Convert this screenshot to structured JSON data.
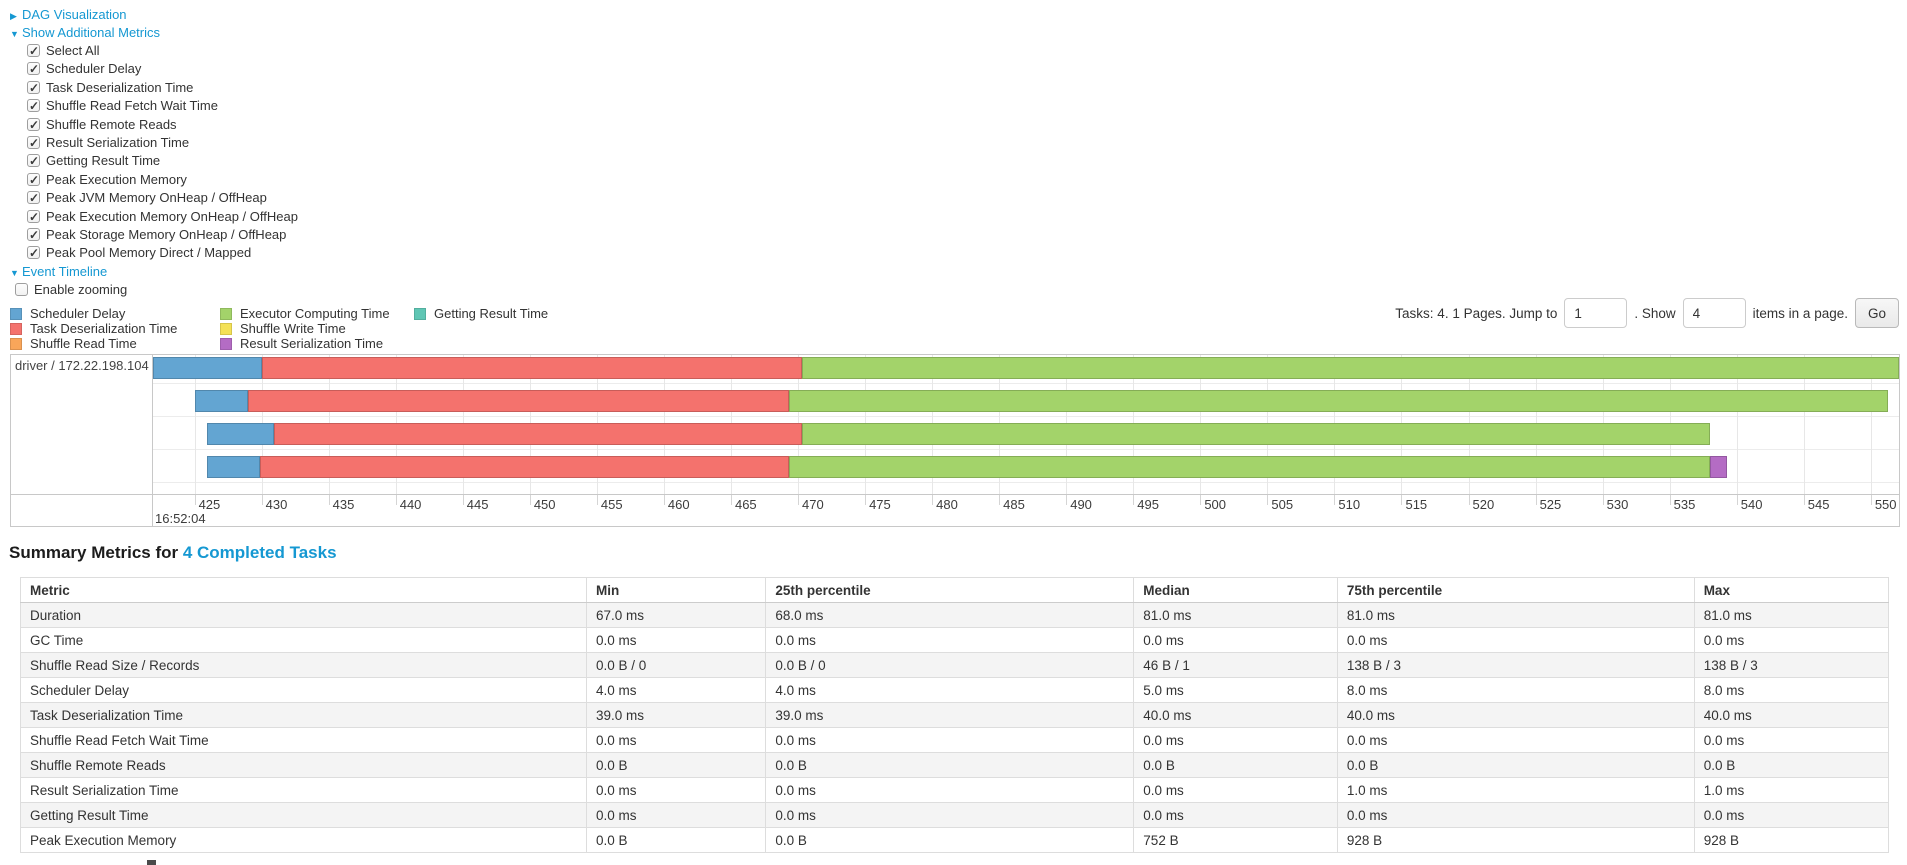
{
  "icons": {
    "collapsed_arrow": "▶",
    "expanded_arrow": "▼"
  },
  "colors": {
    "link": "#1598d2",
    "grid": "#e7e7e7",
    "table_stripe": "#f4f4f4"
  },
  "toggles": {
    "dag": "DAG Visualization",
    "metrics": "Show Additional Metrics",
    "timeline": "Event Timeline"
  },
  "additional_metrics": {
    "items": [
      "Select All",
      "Scheduler Delay",
      "Task Deserialization Time",
      "Shuffle Read Fetch Wait Time",
      "Shuffle Remote Reads",
      "Result Serialization Time",
      "Getting Result Time",
      "Peak Execution Memory",
      "Peak JVM Memory OnHeap / OffHeap",
      "Peak Execution Memory OnHeap / OffHeap",
      "Peak Storage Memory OnHeap / OffHeap",
      "Peak Pool Memory Direct / Mapped"
    ]
  },
  "enable_zooming_label": "Enable zooming",
  "legend": {
    "columns": [
      [
        {
          "label": "Scheduler Delay",
          "color": "#63a5d2"
        },
        {
          "label": "Task Deserialization Time",
          "color": "#f4726d"
        },
        {
          "label": "Shuffle Read Time",
          "color": "#f9a65a"
        }
      ],
      [
        {
          "label": "Executor Computing Time",
          "color": "#a3d36a"
        },
        {
          "label": "Shuffle Write Time",
          "color": "#f4e156"
        },
        {
          "label": "Result Serialization Time",
          "color": "#b46cc4"
        }
      ],
      [
        {
          "label": "Getting Result Time",
          "color": "#5fc6b4"
        }
      ]
    ]
  },
  "pagination": {
    "prefix": "Tasks: 4. 1 Pages. Jump to",
    "jump_value": "1",
    "middle": ". Show",
    "show_value": "4",
    "suffix": "items in a page.",
    "go_label": "Go"
  },
  "chart_data": {
    "type": "timeline",
    "executor_label": "driver / 172.22.198.104",
    "axis": {
      "min": 421.9,
      "max": 552.1,
      "ticks": [
        425,
        430,
        435,
        440,
        445,
        450,
        455,
        460,
        465,
        470,
        475,
        480,
        485,
        490,
        495,
        500,
        505,
        510,
        515,
        520,
        525,
        530,
        535,
        540,
        545,
        550
      ],
      "time_label": "16:52:04"
    },
    "tasks": [
      {
        "segments": [
          {
            "metric": "Scheduler Delay",
            "start": 421.9,
            "end": 430.0
          },
          {
            "metric": "Task Deserialization Time",
            "start": 430.0,
            "end": 470.3
          },
          {
            "metric": "Executor Computing Time",
            "start": 470.3,
            "end": 552.1
          }
        ]
      },
      {
        "segments": [
          {
            "metric": "Scheduler Delay",
            "start": 425.0,
            "end": 429.0
          },
          {
            "metric": "Task Deserialization Time",
            "start": 429.0,
            "end": 469.3
          },
          {
            "metric": "Executor Computing Time",
            "start": 469.3,
            "end": 551.3
          }
        ]
      },
      {
        "segments": [
          {
            "metric": "Scheduler Delay",
            "start": 425.9,
            "end": 430.9
          },
          {
            "metric": "Task Deserialization Time",
            "start": 430.9,
            "end": 470.3
          },
          {
            "metric": "Executor Computing Time",
            "start": 470.3,
            "end": 538.0
          }
        ]
      },
      {
        "segments": [
          {
            "metric": "Scheduler Delay",
            "start": 425.9,
            "end": 429.9
          },
          {
            "metric": "Task Deserialization Time",
            "start": 429.9,
            "end": 469.3
          },
          {
            "metric": "Executor Computing Time",
            "start": 469.3,
            "end": 538.0
          },
          {
            "metric": "Result Serialization Time",
            "start": 538.0,
            "end": 539.3
          }
        ]
      }
    ]
  },
  "summary": {
    "title_prefix": "Summary Metrics for ",
    "title_link": "4 Completed Tasks"
  },
  "summary_table": {
    "headers": [
      "Metric",
      "Min",
      "25th percentile",
      "Median",
      "75th percentile",
      "Max"
    ],
    "rows": [
      [
        "Duration",
        "67.0 ms",
        "68.0 ms",
        "81.0 ms",
        "81.0 ms",
        "81.0 ms"
      ],
      [
        "GC Time",
        "0.0 ms",
        "0.0 ms",
        "0.0 ms",
        "0.0 ms",
        "0.0 ms"
      ],
      [
        "Shuffle Read Size / Records",
        "0.0 B / 0",
        "0.0 B / 0",
        "46 B / 1",
        "138 B / 3",
        "138 B / 3"
      ],
      [
        "Scheduler Delay",
        "4.0 ms",
        "4.0 ms",
        "5.0 ms",
        "8.0 ms",
        "8.0 ms"
      ],
      [
        "Task Deserialization Time",
        "39.0 ms",
        "39.0 ms",
        "40.0 ms",
        "40.0 ms",
        "40.0 ms"
      ],
      [
        "Shuffle Read Fetch Wait Time",
        "0.0 ms",
        "0.0 ms",
        "0.0 ms",
        "0.0 ms",
        "0.0 ms"
      ],
      [
        "Shuffle Remote Reads",
        "0.0 B",
        "0.0 B",
        "0.0 B",
        "0.0 B",
        "0.0 B"
      ],
      [
        "Result Serialization Time",
        "0.0 ms",
        "0.0 ms",
        "0.0 ms",
        "1.0 ms",
        "1.0 ms"
      ],
      [
        "Getting Result Time",
        "0.0 ms",
        "0.0 ms",
        "0.0 ms",
        "0.0 ms",
        "0.0 ms"
      ],
      [
        "Peak Execution Memory",
        "0.0 B",
        "0.0 B",
        "752 B",
        "928 B",
        "928 B"
      ]
    ]
  }
}
